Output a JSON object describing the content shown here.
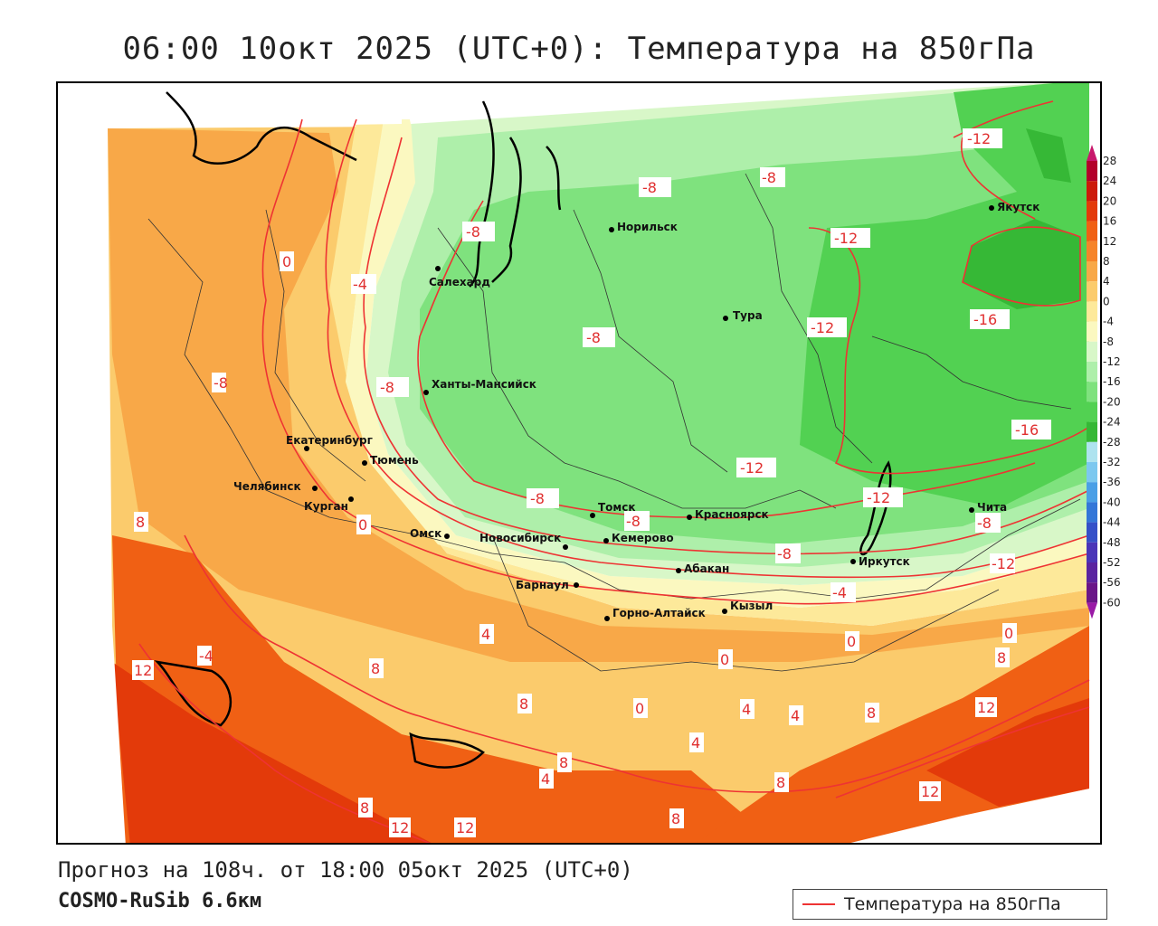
{
  "title": "06:00 10окт 2025 (UTC+0): Температура на 850гПа",
  "forecast": "Прогноз на 108ч. от 18:00 05окт 2025 (UTC+0)",
  "model": "COSMO-RuSib 6.6км",
  "legend": {
    "line_label": "Температура на 850гПа",
    "line_color": "#ee3333"
  },
  "colorbar": {
    "ticks": [
      "28",
      "24",
      "20",
      "16",
      "12",
      "8",
      "4",
      "0",
      "-4",
      "-8",
      "-12",
      "-16",
      "-20",
      "-24",
      "-28",
      "-32",
      "-36",
      "-40",
      "-44",
      "-48",
      "-52",
      "-56",
      "-60"
    ],
    "colors": [
      "#b3002a",
      "#cc1a0a",
      "#e33a0a",
      "#f06014",
      "#f6842a",
      "#f8a848",
      "#fbcb6c",
      "#fde99a",
      "#fbf8c0",
      "#d8f7c8",
      "#aeefaa",
      "#7fe27e",
      "#52d152",
      "#36b836",
      "#aee3ef",
      "#7cc8ef",
      "#4a9fe6",
      "#3476d8",
      "#3550c8",
      "#4a35b8",
      "#5a24a0",
      "#6a1688",
      "#7a0c70"
    ],
    "top_color": "#c8186c",
    "bottom_color": "#9a1aa6"
  },
  "cities": [
    {
      "name": "Норильск"
    },
    {
      "name": "Якутск"
    },
    {
      "name": "Салехард"
    },
    {
      "name": "Тура"
    },
    {
      "name": "Ханты-Мансийск"
    },
    {
      "name": "Екатеринбург"
    },
    {
      "name": "Тюмень"
    },
    {
      "name": "Челябинск"
    },
    {
      "name": "Курган"
    },
    {
      "name": "Омск"
    },
    {
      "name": "Томск"
    },
    {
      "name": "Красноярск"
    },
    {
      "name": "Кемерово"
    },
    {
      "name": "Новосибирск"
    },
    {
      "name": "Абакан"
    },
    {
      "name": "Барнаул"
    },
    {
      "name": "Иркутск"
    },
    {
      "name": "Чита"
    },
    {
      "name": "Горно-Алтайск"
    },
    {
      "name": "Кызыл"
    }
  ],
  "isotherm_labels": [
    "-12",
    "-8",
    "-8",
    "-12",
    "0",
    "-8",
    "-4",
    "-16",
    "-12",
    "-8",
    "-8",
    "-12",
    "-16",
    "-12",
    "-8",
    "-8",
    "-8",
    "-8",
    "-12",
    "-4",
    "-8",
    "8",
    "-4",
    "0",
    "4",
    "8",
    "-4",
    "0",
    "4",
    "12",
    "8",
    "0",
    "0",
    "4",
    "0",
    "4",
    "4",
    "8",
    "8",
    "12",
    "0",
    "4",
    "8",
    "4",
    "8",
    "8",
    "12",
    "12",
    "12",
    "8"
  ]
}
